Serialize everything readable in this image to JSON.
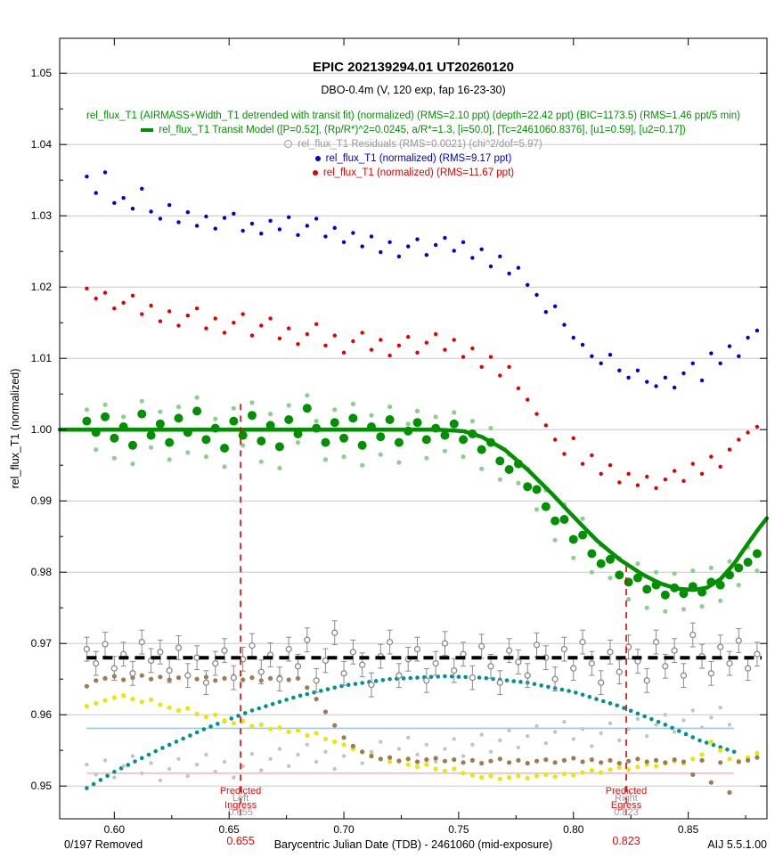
{
  "window": {
    "removed_label": "0/197 Removed",
    "version_label": "AIJ 5.5.1.00"
  },
  "chart_data": {
    "type": "scatter",
    "title": "EPIC 202139294.01   UT20260120",
    "subtitle": "DBO-0.4m (V, 120 exp, fap 16-23-30)",
    "xlabel": "Barycentric Julian Date (TDB) - 2461060 (mid-exposure)",
    "ylabel": "rel_flux_T1 (normalized)",
    "xlim": [
      0.5762,
      0.8843
    ],
    "ylim": [
      0.9454,
      1.0549
    ],
    "grid": "horizontal",
    "legend_position": "top-center-inside",
    "legend": [
      {
        "label": "rel_flux_T1 (AIRMASS+Width_T1 detrended with transit fit) (normalized) (RMS=2.10 ppt) (depth=22.42 ppt) (BIC=1173.5) (RMS=1.46 ppt/5 min)",
        "color": "#009000",
        "marker": "none"
      },
      {
        "label": "rel_flux_T1 Transit Model ([P=0.52], (Rp/R*)^2=0.0245, a/R*=1.3, [i=50.0], [Tc=2461060.8376], [u1=0.59], [u2=0.17])",
        "color": "#009000",
        "marker": "green-dash"
      },
      {
        "label": "rel_flux_T1 Residuals (RMS=0.0021) (chi^2/dof=5.97)",
        "color": "#9a9a9a",
        "marker": "open-circle"
      },
      {
        "label": "rel_flux_T1 (normalized) (RMS=9.17 ppt)",
        "color": "#0000cc",
        "marker": "blue-dot"
      },
      {
        "label": "rel_flux_T1 (normalized) (RMS=11.67 ppt)",
        "color": "#e00000",
        "marker": "red-dot"
      }
    ],
    "x_ticks_major": [
      0.6,
      0.65,
      0.7,
      0.75,
      0.8,
      0.85
    ],
    "x_tick_labels": [
      "0.60",
      "0.65",
      "0.70",
      "0.75",
      "0.80",
      "0.85"
    ],
    "x_ticks_minor": [
      0.625,
      0.675,
      0.725,
      0.775,
      0.825,
      0.875
    ],
    "y_ticks_major": [
      0.95,
      0.96,
      0.97,
      0.98,
      0.99,
      1.0,
      1.01,
      1.02,
      1.03,
      1.04,
      1.05
    ],
    "y_tick_labels": [
      "0.95",
      "0.96",
      "0.97",
      "0.98",
      "0.99",
      "1.00",
      "1.01",
      "1.02",
      "1.03",
      "1.04",
      "1.05"
    ],
    "y_ticks_minor": [
      0.955,
      0.965,
      0.975,
      0.985,
      0.995,
      1.005,
      1.015,
      1.025,
      1.035,
      1.045
    ],
    "series": [
      {
        "id": "airmass_curve",
        "name": "detrend parameter arc (teal)",
        "kind": "dotline",
        "color": "#009292",
        "r": 2.3,
        "step": 0.003,
        "z": 2,
        "anchors": [
          [
            0.588,
            0.9497
          ],
          [
            0.6,
            0.952
          ],
          [
            0.62,
            0.9552
          ],
          [
            0.64,
            0.9581
          ],
          [
            0.66,
            0.9606
          ],
          [
            0.68,
            0.9626
          ],
          [
            0.7,
            0.9641
          ],
          [
            0.72,
            0.965
          ],
          [
            0.744,
            0.9654
          ],
          [
            0.76,
            0.9652
          ],
          [
            0.78,
            0.9645
          ],
          [
            0.8,
            0.9632
          ],
          [
            0.82,
            0.9612
          ],
          [
            0.84,
            0.9586
          ],
          [
            0.855,
            0.9564
          ],
          [
            0.87,
            0.9548
          ]
        ]
      },
      {
        "id": "detrend_gray",
        "name": "detrend parameter dots (light gray)",
        "kind": "scatter",
        "color": "#c4c4c4",
        "r": 2.2,
        "x_start": 0.588,
        "x_step": 0.004,
        "z": 2,
        "values": [
          0.953,
          0.9516,
          0.9536,
          0.9512,
          0.9528,
          0.9542,
          0.9518,
          0.9532,
          0.9508,
          0.9524,
          0.9538,
          0.9514,
          0.953,
          0.9544,
          0.952,
          0.9534,
          0.9512,
          0.9528,
          0.9545,
          0.9522,
          0.9538,
          0.9552,
          0.9528,
          0.9544,
          0.9558,
          0.9534,
          0.9548,
          0.9524,
          0.9542,
          0.9556,
          0.9532,
          0.9548,
          0.9562,
          0.9538,
          0.9552,
          0.9568,
          0.9544,
          0.9558,
          0.9534,
          0.9552,
          0.9566,
          0.9542,
          0.9558,
          0.9572,
          0.9548,
          0.9564,
          0.9578,
          0.9554,
          0.957,
          0.9584,
          0.956,
          0.9576,
          0.959,
          0.9566,
          0.958,
          0.9556,
          0.9574,
          0.9588,
          0.9564,
          0.958,
          0.9594,
          0.957,
          0.9586,
          0.96,
          0.9576,
          0.9592,
          0.9606,
          0.9582,
          0.9596,
          0.961,
          0.9586
        ]
      },
      {
        "id": "width_yellow",
        "name": "Width_T1 detrend dots (yellow)",
        "kind": "scatter",
        "color": "#e8e800",
        "r": 2.6,
        "x_start": 0.588,
        "x_step": 0.004,
        "z": 3,
        "values": [
          0.9612,
          0.9616,
          0.962,
          0.9624,
          0.9627,
          0.9622,
          0.9618,
          0.9621,
          0.9614,
          0.961,
          0.9606,
          0.9609,
          0.9601,
          0.9597,
          0.96,
          0.9592,
          0.9588,
          0.9591,
          0.9584,
          0.9586,
          0.958,
          0.9582,
          0.9576,
          0.9578,
          0.9571,
          0.9574,
          0.9566,
          0.9562,
          0.9558,
          0.9552,
          0.9548,
          0.9543,
          0.9538,
          0.9534,
          0.9536,
          0.953,
          0.9527,
          0.953,
          0.9524,
          0.9521,
          0.9524,
          0.9518,
          0.9515,
          0.9512,
          0.9514,
          0.951,
          0.9512,
          0.9514,
          0.9511,
          0.9514,
          0.9516,
          0.9513,
          0.9517,
          0.9515,
          0.9519,
          0.9522,
          0.9519,
          0.9523,
          0.9526,
          0.9523,
          0.9527,
          0.953,
          0.9528,
          0.9532,
          0.9535,
          0.9532,
          0.9538,
          0.9544,
          0.9562,
          0.955,
          0.9538,
          0.9535,
          0.954,
          0.9546
        ]
      },
      {
        "id": "sky_brown",
        "name": "detrend parameter dots (brown)",
        "kind": "scatter",
        "color": "#9e7b52",
        "r": 2.6,
        "x_start": 0.588,
        "x_step": 0.004,
        "z": 3,
        "values": [
          0.964,
          0.9648,
          0.9651,
          0.9654,
          0.9649,
          0.9652,
          0.9655,
          0.965,
          0.9653,
          0.9649,
          0.9652,
          0.9654,
          0.965,
          0.9653,
          0.9648,
          0.9651,
          0.9654,
          0.9649,
          0.9652,
          0.9648,
          0.9651,
          0.9653,
          0.9649,
          0.9651,
          0.9638,
          0.9622,
          0.9604,
          0.9585,
          0.9568,
          0.9556,
          0.9548,
          0.9542,
          0.9538,
          0.954,
          0.9535,
          0.9538,
          0.9534,
          0.9537,
          0.9539,
          0.9535,
          0.9537,
          0.9533,
          0.9536,
          0.9532,
          0.9535,
          0.9538,
          0.9533,
          0.9536,
          0.9532,
          0.9535,
          0.9537,
          0.9533,
          0.9536,
          0.9539,
          0.9534,
          0.9537,
          0.9533,
          0.9536,
          0.9532,
          0.9535,
          0.9538,
          0.9534,
          0.9536,
          0.9533,
          0.9537,
          0.9534,
          0.9516,
          0.9536,
          0.9505,
          0.9533,
          0.9491,
          0.9534,
          0.9536,
          0.954
        ]
      },
      {
        "id": "residuals",
        "name": "rel_flux_T1 residuals",
        "kind": "errscatter",
        "color": "#8a8a8a",
        "r": 3,
        "err": 0.0013,
        "x_start": 0.588,
        "x_step": 0.004,
        "z": 4,
        "values": [
          0.9692,
          0.9672,
          0.9699,
          0.9665,
          0.9685,
          0.9658,
          0.9702,
          0.9676,
          0.9688,
          0.9662,
          0.9694,
          0.9655,
          0.968,
          0.9645,
          0.9672,
          0.969,
          0.9652,
          0.9678,
          0.9697,
          0.966,
          0.9684,
          0.965,
          0.9692,
          0.9668,
          0.9705,
          0.9648,
          0.9676,
          0.9715,
          0.9658,
          0.9688,
          0.967,
          0.9642,
          0.9682,
          0.9702,
          0.9655,
          0.9678,
          0.9692,
          0.9648,
          0.9672,
          0.97,
          0.9662,
          0.9685,
          0.9652,
          0.9696,
          0.9668,
          0.9645,
          0.969,
          0.9674,
          0.9655,
          0.9698,
          0.968,
          0.965,
          0.9692,
          0.9665,
          0.9702,
          0.9672,
          0.9645,
          0.9688,
          0.966,
          0.9695,
          0.9675,
          0.9648,
          0.9702,
          0.9668,
          0.969,
          0.9655,
          0.9712,
          0.9682,
          0.9658,
          0.9695,
          0.9672,
          0.9704,
          0.9665,
          0.9685
        ]
      },
      {
        "id": "detrended_unbinned",
        "name": "detrended flux unbinned (light green)",
        "kind": "scatter",
        "color": "#8fce8f",
        "r": 2.6,
        "x_start": 0.588,
        "x_step": 0.004,
        "z": 6,
        "values": [
          1.0028,
          0.9972,
          1.0035,
          0.996,
          1.0018,
          0.9952,
          1.004,
          0.9975,
          1.0025,
          0.9958,
          1.0032,
          0.9968,
          1.0045,
          0.9962,
          1.0015,
          0.9948,
          1.003,
          0.9978,
          1.0038,
          0.9955,
          1.0022,
          0.9946,
          1.0034,
          0.9982,
          1.0048,
          1.0012,
          0.9958,
          1.0028,
          0.9962,
          1.0036,
          0.995,
          1.002,
          0.9965,
          1.0032,
          0.9954,
          1.0008,
          1.0026,
          0.996,
          1.0018,
          0.997,
          1.0024,
          0.9962,
          1.0012,
          0.9945,
          1.0002,
          0.993,
          0.9965,
          0.9925,
          0.9945,
          0.9888,
          0.9915,
          0.9845,
          0.9895,
          0.982,
          0.9875,
          0.98,
          0.9838,
          0.9792,
          0.982,
          0.9762,
          0.9812,
          0.975,
          0.98,
          0.9745,
          0.9798,
          0.9748,
          0.9802,
          0.9752,
          0.9806,
          0.976,
          0.9815,
          0.9782,
          0.9835,
          0.9802
        ]
      },
      {
        "id": "transit_model",
        "name": "transit model line (green)",
        "kind": "path",
        "color": "#009000",
        "width": 4.5,
        "z": 7,
        "anchors": [
          [
            0.5762,
            1.0
          ],
          [
            0.6,
            1.0
          ],
          [
            0.65,
            1.0
          ],
          [
            0.7,
            1.0
          ],
          [
            0.74,
            1.0
          ],
          [
            0.752,
            0.9998
          ],
          [
            0.76,
            0.999
          ],
          [
            0.77,
            0.9972
          ],
          [
            0.78,
            0.9944
          ],
          [
            0.79,
            0.9912
          ],
          [
            0.8,
            0.9878
          ],
          [
            0.81,
            0.9845
          ],
          [
            0.82,
            0.9818
          ],
          [
            0.83,
            0.9797
          ],
          [
            0.838,
            0.9784
          ],
          [
            0.845,
            0.9777
          ],
          [
            0.852,
            0.9775
          ],
          [
            0.858,
            0.9778
          ],
          [
            0.864,
            0.979
          ],
          [
            0.87,
            0.9812
          ],
          [
            0.876,
            0.984
          ],
          [
            0.88,
            0.9858
          ],
          [
            0.8843,
            0.9876
          ]
        ]
      },
      {
        "id": "detrended",
        "name": "detrended flux with transit fit (green)",
        "kind": "scatter",
        "color": "#009000",
        "r": 5,
        "x_start": 0.588,
        "x_step": 0.004,
        "z": 8,
        "values": [
          1.0012,
          0.9996,
          1.0018,
          0.9988,
          1.0004,
          0.9978,
          1.0022,
          0.9992,
          1.0008,
          0.9982,
          1.0016,
          0.9996,
          1.0026,
          0.9986,
          1.0002,
          0.9974,
          1.0012,
          0.9992,
          1.002,
          0.9984,
          1.0006,
          0.9976,
          1.0014,
          0.9994,
          1.003,
          1.0002,
          0.9982,
          1.001,
          0.9988,
          1.0016,
          0.9978,
          1.0004,
          0.999,
          1.0014,
          0.9982,
          0.9998,
          1.001,
          0.9986,
          1.0002,
          0.9992,
          1.0008,
          0.9986,
          0.9994,
          0.9972,
          0.9982,
          0.9956,
          0.9944,
          0.9952,
          0.992,
          0.9916,
          0.9892,
          0.9872,
          0.9874,
          0.9846,
          0.9852,
          0.9826,
          0.9812,
          0.9818,
          0.9796,
          0.9786,
          0.9792,
          0.9776,
          0.9782,
          0.9768,
          0.9778,
          0.977,
          0.978,
          0.9772,
          0.9786,
          0.9782,
          0.9796,
          0.9806,
          0.9814,
          0.9826
        ]
      },
      {
        "id": "raw_target",
        "name": "rel_flux_T1 raw (blue)",
        "kind": "scatter",
        "color": "#0000cc",
        "r": 2.2,
        "x_start": 0.588,
        "x_step": 0.004,
        "z": 9,
        "values": [
          1.0355,
          1.0332,
          1.0361,
          1.0318,
          1.0325,
          1.031,
          1.0338,
          1.0306,
          1.0296,
          1.0315,
          1.0291,
          1.0305,
          1.0286,
          1.0299,
          1.0282,
          1.0297,
          1.0303,
          1.0279,
          1.0289,
          1.0275,
          1.0293,
          1.0281,
          1.0298,
          1.0273,
          1.0286,
          1.0296,
          1.0271,
          1.0283,
          1.0263,
          1.0276,
          1.0257,
          1.0271,
          1.0249,
          1.0263,
          1.0243,
          1.0257,
          1.0267,
          1.0245,
          1.0259,
          1.0269,
          1.0251,
          1.0263,
          1.0241,
          1.0253,
          1.0229,
          1.0243,
          1.0219,
          1.0227,
          1.0203,
          1.0189,
          1.0165,
          1.0173,
          1.0147,
          1.0129,
          1.0119,
          1.0103,
          1.0093,
          1.0105,
          1.0083,
          1.0073,
          1.0083,
          1.0067,
          1.0061,
          1.0073,
          1.0059,
          1.0079,
          1.0093,
          1.0069,
          1.0107,
          1.0093,
          1.0117,
          1.0103,
          1.0129,
          1.0139
        ]
      },
      {
        "id": "raw_comp",
        "name": "rel_flux_T1 raw (red)",
        "kind": "scatter",
        "color": "#e00000",
        "r": 2.2,
        "x_start": 0.588,
        "x_step": 0.004,
        "z": 9,
        "values": [
          1.0198,
          1.0184,
          1.0192,
          1.017,
          1.0178,
          1.0188,
          1.0162,
          1.0174,
          1.0152,
          1.0166,
          1.0146,
          1.016,
          1.017,
          1.0142,
          1.0156,
          1.0136,
          1.015,
          1.0162,
          1.0132,
          1.0146,
          1.0156,
          1.0128,
          1.0142,
          1.012,
          1.0134,
          1.0148,
          1.0118,
          1.0132,
          1.0108,
          1.0124,
          1.0136,
          1.0112,
          1.0126,
          1.0104,
          1.0118,
          1.013,
          1.0108,
          1.0122,
          1.0134,
          1.0112,
          1.0126,
          1.0102,
          1.0114,
          1.0088,
          1.0102,
          1.0076,
          1.0088,
          1.0058,
          1.0042,
          1.0022,
          1.0006,
          0.9986,
          0.9966,
          0.9988,
          0.9952,
          0.9964,
          0.9938,
          0.995,
          0.9926,
          0.9938,
          0.9922,
          0.9934,
          0.9918,
          0.993,
          0.9942,
          0.9928,
          0.9952,
          0.9938,
          0.9962,
          0.9948,
          0.9972,
          0.9986,
          0.9996,
          1.0004
        ]
      }
    ],
    "lines": [
      {
        "id": "cyan_trend",
        "name": "horizontal trend line (light blue)",
        "kind": "hline",
        "y": 0.9581,
        "x0": 0.588,
        "x1": 0.87,
        "color": "#87cefa",
        "width": 1.6,
        "z": 1
      },
      {
        "id": "pink_trend",
        "name": "horizontal trend line (pink)",
        "kind": "hline",
        "y": 0.9518,
        "x0": 0.588,
        "x1": 0.87,
        "color": "#ffb6c1",
        "width": 1.6,
        "z": 1
      },
      {
        "id": "residual_zero",
        "name": "residual zero line (black dashed)",
        "kind": "hline",
        "y": 0.968,
        "x0": 0.588,
        "x1": 0.882,
        "color": "#000000",
        "width": 4,
        "dash": "11 7",
        "z": 5
      }
    ],
    "vmarkers": [
      {
        "id": "ingress",
        "x": 0.655,
        "y0": 0.9454,
        "y1": 1.0036,
        "color": "#e00000",
        "width": 1.6,
        "dash": "7 6",
        "labels": [
          {
            "text": "Predicted",
            "color": "#ff0000"
          },
          {
            "text": "Left",
            "color": "#9a9a9a"
          },
          {
            "text": "Ingress",
            "color": "#ff0000"
          },
          {
            "text": "0.655",
            "color": "#9a9a9a"
          }
        ],
        "below_value": {
          "text": "0.655",
          "color": "#ff0000"
        }
      },
      {
        "id": "egress",
        "x": 0.823,
        "y0": 0.9454,
        "y1": 0.9809,
        "color": "#e00000",
        "width": 1.6,
        "dash": "7 6",
        "labels": [
          {
            "text": "Predicted",
            "color": "#ff0000"
          },
          {
            "text": "Right",
            "color": "#9a9a9a"
          },
          {
            "text": "Egress",
            "color": "#ff0000"
          },
          {
            "text": "0.823",
            "color": "#9a9a9a"
          }
        ],
        "below_value": {
          "text": "0.823",
          "color": "#ff0000"
        }
      }
    ]
  }
}
